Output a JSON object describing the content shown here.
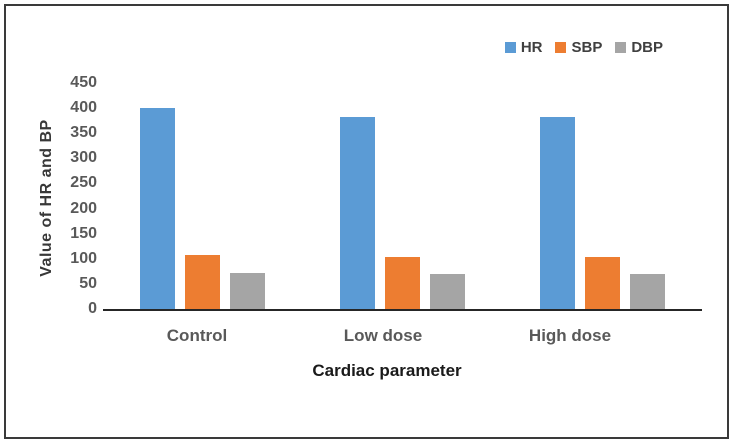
{
  "chart_data": {
    "type": "bar",
    "title": "",
    "categories": [
      "Control",
      "Low dose",
      "High dose"
    ],
    "series": [
      {
        "name": "HR",
        "color": "#5B9BD5",
        "values": [
          400,
          383,
          383
        ]
      },
      {
        "name": "SBP",
        "color": "#ED7D31",
        "values": [
          107,
          104,
          104
        ]
      },
      {
        "name": "DBP",
        "color": "#A5A5A5",
        "values": [
          71,
          69,
          69
        ]
      }
    ],
    "xlabel": "Cardiac parameter",
    "ylabel": "Value of HR and BP",
    "ylim": [
      0,
      450
    ],
    "yticks": [
      0,
      50,
      100,
      150,
      200,
      250,
      300,
      350,
      400,
      450
    ],
    "grid": false,
    "legend_position": "top-right"
  },
  "style": {
    "series_colors": {
      "HR": "#5B9BD5",
      "SBP": "#ED7D31",
      "DBP": "#A5A5A5"
    },
    "axis_line_color": "#262626",
    "tick_label_color": "#595959",
    "category_label_color": "#595959",
    "x_axis_title_color": "#1a1a1a",
    "y_axis_title_color": "#383838",
    "frame_border_color": "#3a3a3a",
    "background": "#ffffff"
  }
}
